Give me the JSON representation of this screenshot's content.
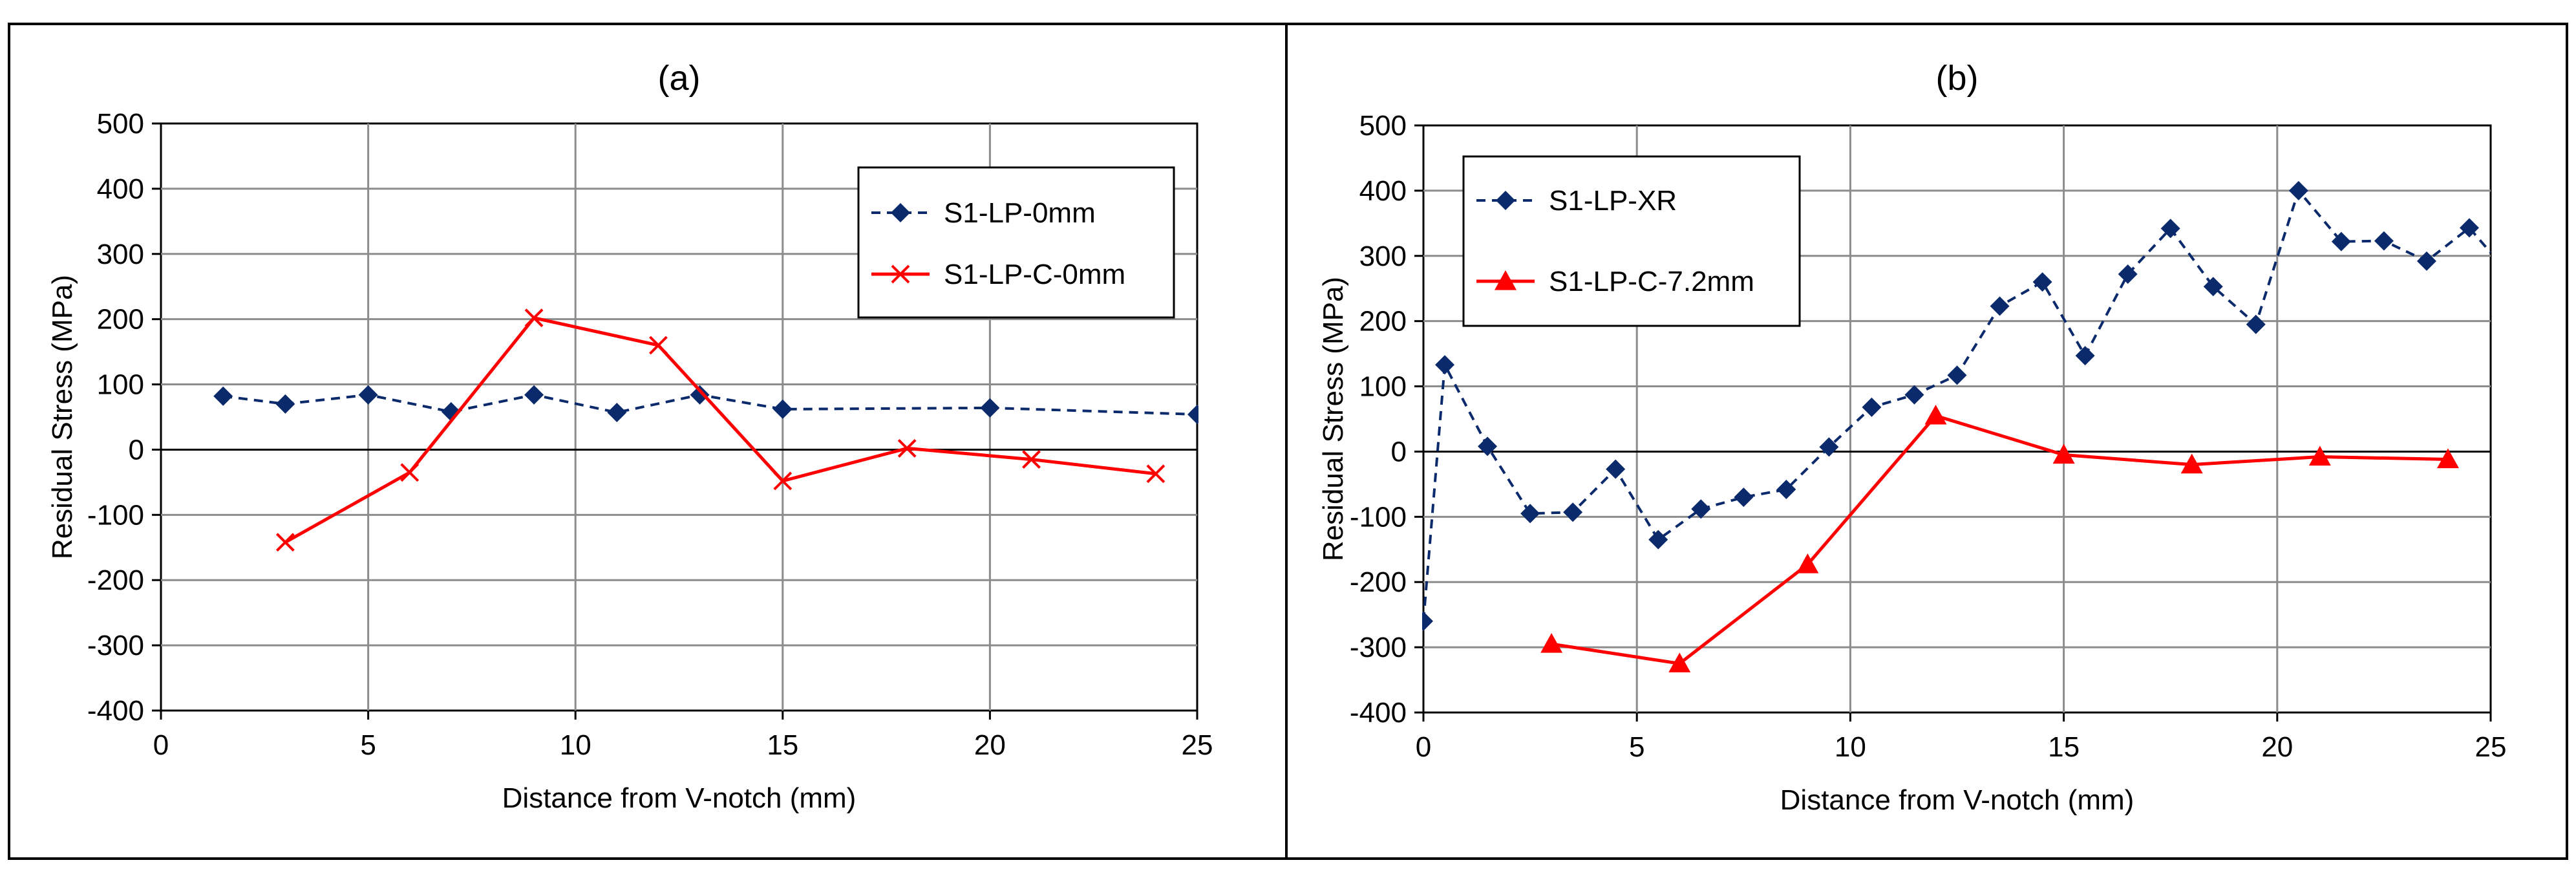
{
  "chart_data": [
    {
      "type": "line",
      "title": "(a)",
      "xlabel": "Distance from V-notch (mm)",
      "ylabel": "Residual Stress (MPa)",
      "xlim": [
        0,
        25
      ],
      "ylim": [
        -400,
        500
      ],
      "xticks": [
        0,
        5,
        10,
        15,
        20,
        25
      ],
      "yticks": [
        -400,
        -300,
        -200,
        -100,
        0,
        100,
        200,
        300,
        400,
        500
      ],
      "grid": true,
      "legend_position": "top-right",
      "series": [
        {
          "name": "S1-LP-0mm",
          "color": "#0b2a6b",
          "line": "dashed",
          "marker": "diamond",
          "x": [
            1.5,
            3,
            5,
            7,
            9,
            11,
            13,
            15,
            20,
            25
          ],
          "y": [
            82,
            70,
            84,
            58,
            84,
            57,
            84,
            62,
            64,
            54
          ]
        },
        {
          "name": "S1-LP-C-0mm",
          "color": "#ff0000",
          "line": "solid",
          "marker": "x",
          "x": [
            3,
            6,
            9,
            12,
            15,
            18,
            21,
            24
          ],
          "y": [
            -142,
            -35,
            202,
            160,
            -48,
            2,
            -15,
            -37
          ]
        }
      ]
    },
    {
      "type": "line",
      "title": "(b)",
      "xlabel": "Distance from V-notch (mm)",
      "ylabel": "Residual Stress (MPa)",
      "xlim": [
        0,
        25
      ],
      "ylim": [
        -400,
        500
      ],
      "xticks": [
        0,
        5,
        10,
        15,
        20,
        25
      ],
      "yticks": [
        -400,
        -300,
        -200,
        -100,
        0,
        100,
        200,
        300,
        400,
        500
      ],
      "grid": true,
      "legend_position": "top-left",
      "series": [
        {
          "name": "S1-LP-XR",
          "color": "#0b2a6b",
          "line": "dashed",
          "marker": "diamond",
          "x": [
            0,
            0.5,
            1.5,
            2.5,
            3.5,
            4.5,
            5.5,
            6.5,
            7.5,
            8.5,
            9.5,
            10.5,
            11.5,
            12.5,
            13.5,
            14.5,
            15.5,
            16.5,
            17.5,
            18.5,
            19.5,
            20.5,
            21.5,
            22.5,
            23.5,
            24.5,
            25
          ],
          "y": [
            -260,
            133,
            8,
            -95,
            -93,
            -27,
            -135,
            -88,
            -70,
            -58,
            7,
            68,
            87,
            117,
            223,
            260,
            147,
            272,
            342,
            253,
            195,
            400,
            322,
            323,
            292,
            343,
            305
          ],
          "markers_hidden_at_index": [
            26
          ]
        },
        {
          "name": "S1-LP-C-7.2mm",
          "color": "#ff0000",
          "line": "solid",
          "marker": "triangle",
          "x": [
            3,
            6,
            9,
            12,
            15,
            18,
            21,
            24
          ],
          "y": [
            -295,
            -325,
            -173,
            55,
            -5,
            -20,
            -8,
            -12
          ]
        }
      ]
    }
  ]
}
